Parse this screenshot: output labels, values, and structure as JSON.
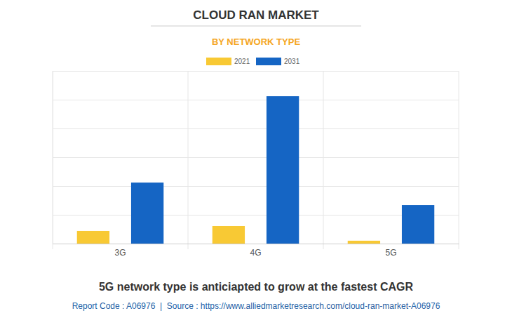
{
  "chart_data": {
    "type": "bar",
    "title": "CLOUD RAN MARKET",
    "subtitle": "BY NETWORK TYPE",
    "categories": [
      "3G",
      "4G",
      "5G"
    ],
    "series": [
      {
        "name": "2021",
        "color": "#f8c934",
        "values": [
          0.44,
          0.61,
          0.1
        ]
      },
      {
        "name": "2031",
        "color": "#1565c4",
        "values": [
          2.12,
          5.12,
          1.34
        ]
      }
    ],
    "ylim": [
      0,
      6
    ],
    "yticks": [
      0,
      1,
      2,
      3,
      4,
      5,
      6
    ],
    "grid": true,
    "tick_labels": "x",
    "legend": "top",
    "annotations": [
      "5G network type is anticiapted to grow at the fastest CAGR",
      "Report Code : A06976  |  Source : https://www.alliedmarketresearch.com/cloud-ran-market-A06976"
    ]
  }
}
